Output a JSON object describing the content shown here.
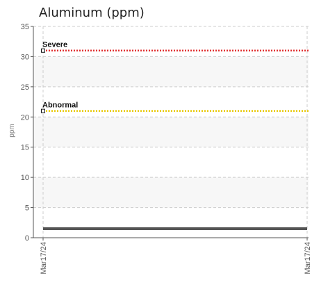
{
  "chart_data": {
    "type": "line",
    "title": "Aluminum (ppm)",
    "ylabel": "ppm",
    "ylim": [
      0,
      35
    ],
    "y_ticks": [
      0,
      5,
      10,
      15,
      20,
      25,
      30,
      35
    ],
    "x_ticks": [
      "Mar17/24",
      "Mar17/24"
    ],
    "grid": true,
    "series": [
      {
        "values": [
          1.5,
          1.5
        ],
        "color": "#555555"
      }
    ],
    "thresholds": [
      {
        "label": "Severe",
        "value": 31,
        "color": "#e03030"
      },
      {
        "label": "Abnormal",
        "value": 21,
        "color": "#e8c800"
      }
    ]
  }
}
